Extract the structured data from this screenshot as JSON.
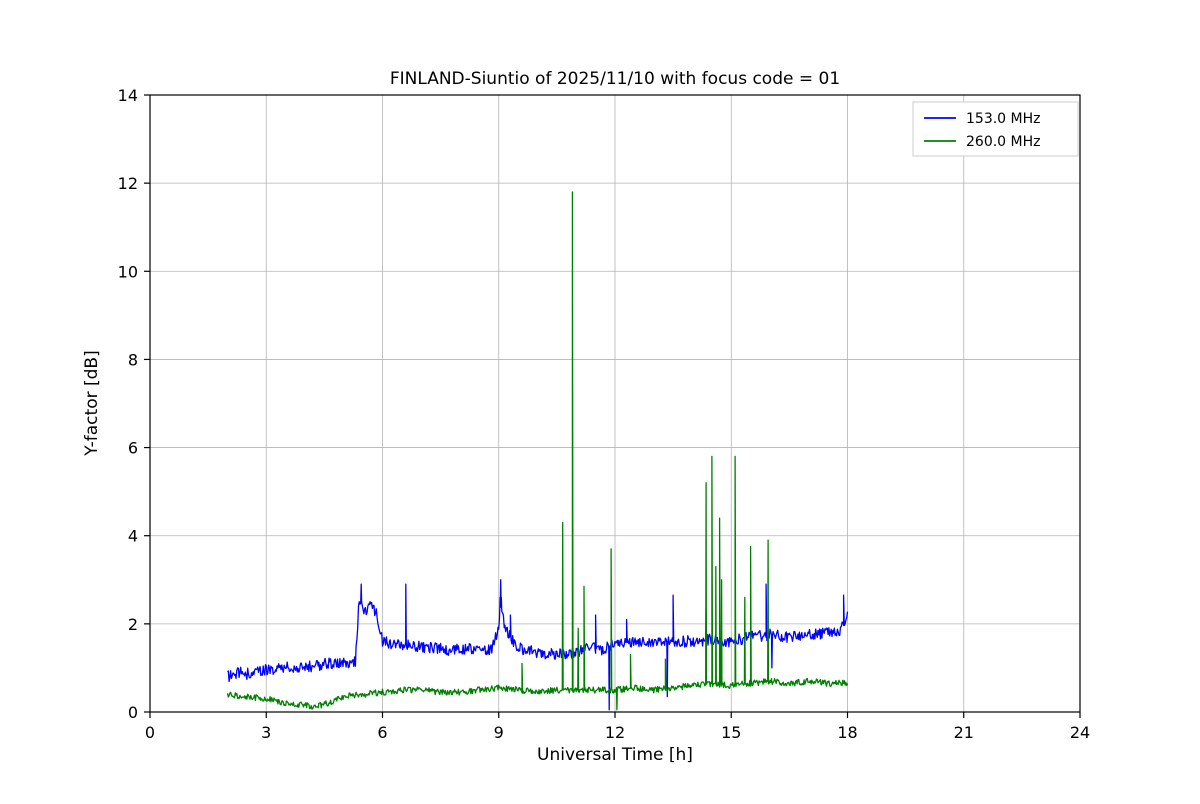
{
  "page": {
    "background": "#ffffff"
  },
  "chart_data": {
    "type": "line",
    "title": "FINLAND-Siuntio of 2025/11/10 with focus code = 01",
    "xlabel": "Universal Time [h]",
    "ylabel": "Y-factor [dB]",
    "xlim": [
      0,
      24
    ],
    "ylim": [
      0,
      14
    ],
    "xticks": [
      0,
      3,
      6,
      9,
      12,
      15,
      18,
      21,
      24
    ],
    "yticks": [
      0,
      2,
      4,
      6,
      8,
      10,
      12,
      14
    ],
    "grid": true,
    "grid_color": "#b4b4b4",
    "legend_position": "upper right",
    "data_time_range_hours": [
      2.0,
      18.0
    ],
    "series": [
      {
        "name": "153.0 MHz",
        "color": "#0000ff",
        "noise_band": 0.13,
        "baseline_points": [
          [
            2.0,
            0.8
          ],
          [
            2.3,
            0.9
          ],
          [
            2.6,
            0.85
          ],
          [
            3.0,
            0.95
          ],
          [
            3.4,
            1.0
          ],
          [
            3.8,
            1.0
          ],
          [
            4.2,
            1.05
          ],
          [
            4.6,
            1.1
          ],
          [
            5.0,
            1.1
          ],
          [
            5.3,
            1.15
          ],
          [
            5.4,
            2.55
          ],
          [
            5.55,
            2.3
          ],
          [
            5.7,
            2.45
          ],
          [
            5.85,
            2.2
          ],
          [
            6.0,
            1.6
          ],
          [
            6.3,
            1.55
          ],
          [
            6.8,
            1.5
          ],
          [
            7.3,
            1.45
          ],
          [
            7.8,
            1.4
          ],
          [
            8.3,
            1.45
          ],
          [
            8.8,
            1.4
          ],
          [
            9.0,
            1.9
          ],
          [
            9.05,
            2.6
          ],
          [
            9.15,
            1.9
          ],
          [
            9.3,
            1.7
          ],
          [
            9.5,
            1.45
          ],
          [
            10.0,
            1.35
          ],
          [
            10.5,
            1.3
          ],
          [
            11.0,
            1.35
          ],
          [
            11.3,
            1.5
          ],
          [
            11.6,
            1.4
          ],
          [
            12.0,
            1.55
          ],
          [
            12.5,
            1.6
          ],
          [
            13.0,
            1.55
          ],
          [
            13.5,
            1.6
          ],
          [
            14.0,
            1.6
          ],
          [
            14.5,
            1.65
          ],
          [
            15.0,
            1.6
          ],
          [
            15.5,
            1.7
          ],
          [
            16.0,
            1.75
          ],
          [
            16.5,
            1.7
          ],
          [
            17.0,
            1.75
          ],
          [
            17.5,
            1.8
          ],
          [
            17.8,
            1.85
          ],
          [
            18.0,
            2.2
          ]
        ],
        "spikes": [
          [
            5.45,
            2.9
          ],
          [
            6.6,
            2.9
          ],
          [
            9.05,
            3.0
          ],
          [
            9.3,
            2.2
          ],
          [
            11.5,
            2.2
          ],
          [
            11.85,
            0.05
          ],
          [
            12.3,
            2.1
          ],
          [
            13.35,
            0.35
          ],
          [
            13.5,
            2.65
          ],
          [
            14.35,
            2.3
          ],
          [
            15.9,
            2.9
          ],
          [
            16.05,
            1.0
          ],
          [
            17.9,
            2.65
          ]
        ]
      },
      {
        "name": "260.0 MHz",
        "color": "#008000",
        "noise_band": 0.07,
        "baseline_points": [
          [
            2.0,
            0.4
          ],
          [
            2.5,
            0.35
          ],
          [
            3.0,
            0.3
          ],
          [
            3.5,
            0.2
          ],
          [
            4.0,
            0.15
          ],
          [
            4.3,
            0.12
          ],
          [
            4.6,
            0.2
          ],
          [
            5.0,
            0.35
          ],
          [
            5.5,
            0.4
          ],
          [
            6.0,
            0.45
          ],
          [
            6.5,
            0.5
          ],
          [
            7.0,
            0.5
          ],
          [
            7.5,
            0.45
          ],
          [
            8.0,
            0.45
          ],
          [
            8.5,
            0.5
          ],
          [
            9.0,
            0.55
          ],
          [
            9.5,
            0.5
          ],
          [
            10.0,
            0.45
          ],
          [
            10.5,
            0.5
          ],
          [
            11.0,
            0.5
          ],
          [
            11.5,
            0.5
          ],
          [
            12.0,
            0.5
          ],
          [
            12.5,
            0.55
          ],
          [
            13.0,
            0.5
          ],
          [
            13.5,
            0.55
          ],
          [
            14.0,
            0.6
          ],
          [
            14.5,
            0.65
          ],
          [
            15.0,
            0.6
          ],
          [
            15.5,
            0.65
          ],
          [
            16.0,
            0.7
          ],
          [
            16.5,
            0.65
          ],
          [
            17.0,
            0.7
          ],
          [
            17.5,
            0.65
          ],
          [
            18.0,
            0.65
          ]
        ],
        "spikes": [
          [
            9.6,
            1.1
          ],
          [
            10.65,
            4.3
          ],
          [
            10.9,
            11.8
          ],
          [
            11.05,
            1.9
          ],
          [
            11.2,
            2.85
          ],
          [
            11.9,
            3.7
          ],
          [
            12.05,
            0.05
          ],
          [
            12.4,
            1.3
          ],
          [
            13.3,
            1.2
          ],
          [
            14.35,
            5.2
          ],
          [
            14.5,
            5.8
          ],
          [
            14.6,
            3.3
          ],
          [
            14.7,
            4.4
          ],
          [
            14.75,
            3.0
          ],
          [
            15.1,
            5.8
          ],
          [
            15.35,
            2.6
          ],
          [
            15.5,
            3.75
          ],
          [
            15.95,
            3.9
          ]
        ]
      }
    ]
  }
}
